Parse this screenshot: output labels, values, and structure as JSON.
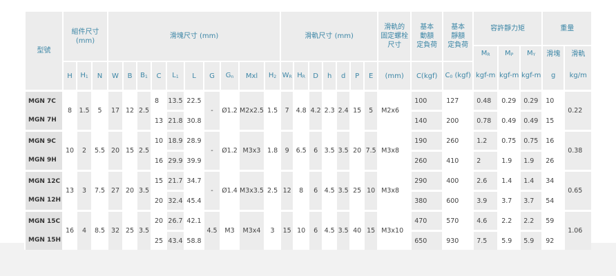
{
  "header": {
    "model": "型號",
    "assembly": "組件尺寸\n(mm)",
    "block": "滑塊尺寸 (mm)",
    "rail": "滑軌尺寸 (mm)",
    "rail_bolt": "滑軌的\n固定螺栓\n尺寸",
    "dynamic": "基本\n動額\n定負荷",
    "static": "基本\n靜額\n定負荷",
    "moment": "容許靜力矩",
    "weight": "重量",
    "cols": [
      {
        "t": "H",
        "s": ""
      },
      {
        "t": "H",
        "s": "1"
      },
      {
        "t": "N",
        "s": ""
      },
      {
        "t": "W",
        "s": ""
      },
      {
        "t": "B",
        "s": ""
      },
      {
        "t": "B",
        "s": "1"
      },
      {
        "t": "C",
        "s": ""
      },
      {
        "t": "L",
        "s": "1"
      },
      {
        "t": "L",
        "s": ""
      },
      {
        "t": "G",
        "s": ""
      },
      {
        "t": "G",
        "s": "n"
      },
      {
        "t": "Mxl",
        "s": ""
      },
      {
        "t": "H",
        "s": "2"
      },
      {
        "t": "W",
        "s": "R"
      },
      {
        "t": "H",
        "s": "R"
      },
      {
        "t": "D",
        "s": ""
      },
      {
        "t": "h",
        "s": ""
      },
      {
        "t": "d",
        "s": ""
      },
      {
        "t": "P",
        "s": ""
      },
      {
        "t": "E",
        "s": ""
      }
    ],
    "bolt_unit": "(mm)",
    "c_unit": "C(kgf)",
    "c0_main": "C",
    "c0_sub": "0",
    "c0_unit": " (kgf)",
    "mr": {
      "t": "M",
      "s": "R"
    },
    "mp": {
      "t": "M",
      "s": "P"
    },
    "my": {
      "t": "M",
      "s": "Y"
    },
    "moment_unit": "kgf-m",
    "block_w": "滑塊",
    "rail_w": "滑軌",
    "block_unit": "g",
    "rail_unit": "kg/m"
  },
  "rows": [
    {
      "models": [
        "MGN 7C",
        "MGN 7H"
      ],
      "H": "8",
      "H1": "1.5",
      "N": "5",
      "W": "17",
      "B": "12",
      "B1": "2.5",
      "C": [
        "8",
        "13"
      ],
      "L1": [
        "13.5",
        "21.8"
      ],
      "L": [
        "22.5",
        "30.8"
      ],
      "G": "-",
      "Gn": "Ø1.2",
      "Mxl": "M2x2.5",
      "H2": "1.5",
      "WR": "7",
      "HR": "4.8",
      "D": "4.2",
      "h": "2.3",
      "d": "2.4",
      "P": "15",
      "E": "5",
      "bolt": "M2x6",
      "Cdyn": [
        "100",
        "140"
      ],
      "C0": [
        "127",
        "200"
      ],
      "MR": [
        "0.48",
        "0.78"
      ],
      "MP": [
        "0.29",
        "0.49"
      ],
      "MY": [
        "0.29",
        "0.49"
      ],
      "g": [
        "10",
        "15"
      ],
      "kgm": "0.22"
    },
    {
      "models": [
        "MGN 9C",
        "MGN 9H"
      ],
      "H": "10",
      "H1": "2",
      "N": "5.5",
      "W": "20",
      "B": "15",
      "B1": "2.5",
      "C": [
        "10",
        "16"
      ],
      "L1": [
        "18.9",
        "29.9"
      ],
      "L": [
        "28.9",
        "39.9"
      ],
      "G": "-",
      "Gn": "Ø1.2",
      "Mxl": "M3x3",
      "H2": "1.8",
      "WR": "9",
      "HR": "6.5",
      "D": "6",
      "h": "3.5",
      "d": "3.5",
      "P": "20",
      "E": "7.5",
      "bolt": "M3x8",
      "Cdyn": [
        "190",
        "260"
      ],
      "C0": [
        "260",
        "410"
      ],
      "MR": [
        "1.2",
        "2"
      ],
      "MP": [
        "0.75",
        "1.9"
      ],
      "MY": [
        "0.75",
        "1.9"
      ],
      "g": [
        "16",
        "26"
      ],
      "kgm": "0.38"
    },
    {
      "models": [
        "MGN 12C",
        "MGN 12H"
      ],
      "H": "13",
      "H1": "3",
      "N": "7.5",
      "W": "27",
      "B": "20",
      "B1": "3.5",
      "C": [
        "15",
        "20"
      ],
      "L1": [
        "21.7",
        "32.4"
      ],
      "L": [
        "34.7",
        "45.4"
      ],
      "G": "-",
      "Gn": "Ø1.4",
      "Mxl": "M3x3.5",
      "H2": "2.5",
      "WR": "12",
      "HR": "8",
      "D": "6",
      "h": "4.5",
      "d": "3.5",
      "P": "25",
      "E": "10",
      "bolt": "M3x8",
      "Cdyn": [
        "290",
        "380"
      ],
      "C0": [
        "400",
        "600"
      ],
      "MR": [
        "2.6",
        "3.9"
      ],
      "MP": [
        "1.4",
        "3.7"
      ],
      "MY": [
        "1.4",
        "3.7"
      ],
      "g": [
        "34",
        "54"
      ],
      "kgm": "0.65"
    },
    {
      "models": [
        "MGN 15C",
        "MGN 15H"
      ],
      "H": "16",
      "H1": "4",
      "N": "8.5",
      "W": "32",
      "B": "25",
      "B1": "3.5",
      "C": [
        "20",
        "25"
      ],
      "L1": [
        "26.7",
        "43.4"
      ],
      "L": [
        "42.1",
        "58.8"
      ],
      "G": "4.5",
      "Gn": "M3",
      "Mxl": "M3x4",
      "H2": "3",
      "WR": "15",
      "HR": "10",
      "D": "6",
      "h": "4.5",
      "d": "3.5",
      "P": "40",
      "E": "15",
      "bolt": "M3x10",
      "Cdyn": [
        "470",
        "650"
      ],
      "C0": [
        "570",
        "930"
      ],
      "MR": [
        "4.6",
        "7.5"
      ],
      "MP": [
        "2.2",
        "5.9"
      ],
      "MY": [
        "2.2",
        "5.9"
      ],
      "g": [
        "59",
        "92"
      ],
      "kgm": "1.06"
    }
  ],
  "colors": {
    "header_text": "#3c86a6",
    "header_bg": "#ececec",
    "alt_col": "#ececec"
  }
}
